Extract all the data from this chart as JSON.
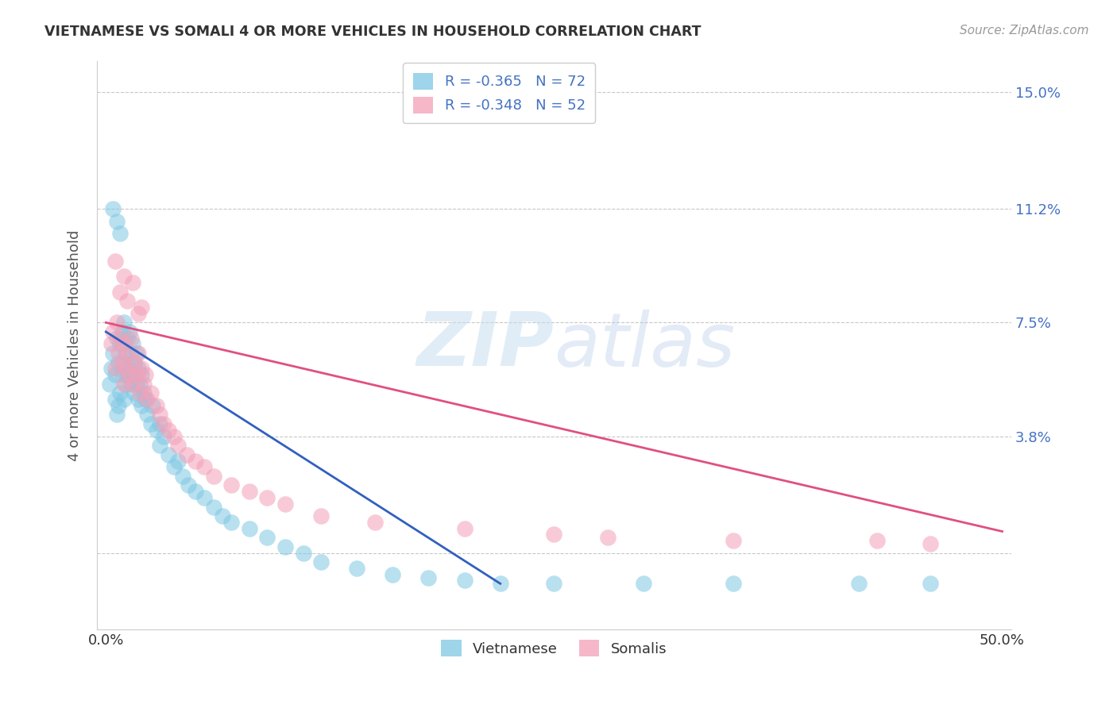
{
  "title": "VIETNAMESE VS SOMALI 4 OR MORE VEHICLES IN HOUSEHOLD CORRELATION CHART",
  "source": "Source: ZipAtlas.com",
  "ylabel": "4 or more Vehicles in Household",
  "xlim": [
    0.0,
    0.5
  ],
  "ylim": [
    -0.025,
    0.16
  ],
  "x_ticks": [
    0.0,
    0.5
  ],
  "x_tick_labels": [
    "0.0%",
    "50.0%"
  ],
  "y_ticks": [
    0.0,
    0.038,
    0.075,
    0.112,
    0.15
  ],
  "y_tick_labels": [
    "",
    "3.8%",
    "7.5%",
    "11.2%",
    "15.0%"
  ],
  "legend_label1": "Vietnamese",
  "legend_label2": "Somalis",
  "vietnamese_color": "#7ec8e3",
  "somali_color": "#f4a0b8",
  "line_color_v": "#3060c0",
  "line_color_s": "#e05080",
  "background_color": "#ffffff",
  "grid_color": "#c8c8c8",
  "viet_line_x0": 0.0,
  "viet_line_y0": 0.072,
  "viet_line_x1": 0.22,
  "viet_line_y1": -0.01,
  "soma_line_x0": 0.0,
  "soma_line_y0": 0.075,
  "soma_line_x1": 0.5,
  "soma_line_y1": 0.007,
  "vietnamese_x": [
    0.002,
    0.003,
    0.004,
    0.005,
    0.005,
    0.006,
    0.006,
    0.007,
    0.007,
    0.008,
    0.008,
    0.009,
    0.009,
    0.01,
    0.01,
    0.01,
    0.011,
    0.011,
    0.012,
    0.012,
    0.013,
    0.013,
    0.014,
    0.014,
    0.015,
    0.015,
    0.016,
    0.016,
    0.017,
    0.017,
    0.018,
    0.018,
    0.019,
    0.02,
    0.02,
    0.021,
    0.022,
    0.023,
    0.025,
    0.026,
    0.028,
    0.03,
    0.03,
    0.032,
    0.035,
    0.038,
    0.04,
    0.043,
    0.046,
    0.05,
    0.055,
    0.06,
    0.065,
    0.07,
    0.08,
    0.09,
    0.1,
    0.11,
    0.12,
    0.14,
    0.16,
    0.18,
    0.2,
    0.22,
    0.25,
    0.3,
    0.35,
    0.42,
    0.46,
    0.004,
    0.006,
    0.008
  ],
  "vietnamese_y": [
    0.055,
    0.06,
    0.065,
    0.05,
    0.058,
    0.045,
    0.07,
    0.048,
    0.062,
    0.052,
    0.068,
    0.058,
    0.072,
    0.05,
    0.062,
    0.075,
    0.055,
    0.065,
    0.058,
    0.07,
    0.06,
    0.072,
    0.055,
    0.065,
    0.058,
    0.068,
    0.052,
    0.062,
    0.055,
    0.065,
    0.05,
    0.06,
    0.055,
    0.048,
    0.058,
    0.052,
    0.05,
    0.045,
    0.042,
    0.048,
    0.04,
    0.035,
    0.042,
    0.038,
    0.032,
    0.028,
    0.03,
    0.025,
    0.022,
    0.02,
    0.018,
    0.015,
    0.012,
    0.01,
    0.008,
    0.005,
    0.002,
    0.0,
    -0.003,
    -0.005,
    -0.007,
    -0.008,
    -0.009,
    -0.01,
    -0.01,
    -0.01,
    -0.01,
    -0.01,
    -0.01,
    0.112,
    0.108,
    0.104
  ],
  "somali_x": [
    0.003,
    0.004,
    0.005,
    0.006,
    0.007,
    0.008,
    0.009,
    0.01,
    0.01,
    0.011,
    0.012,
    0.013,
    0.014,
    0.015,
    0.016,
    0.017,
    0.018,
    0.019,
    0.02,
    0.021,
    0.022,
    0.023,
    0.025,
    0.028,
    0.03,
    0.032,
    0.035,
    0.038,
    0.04,
    0.045,
    0.05,
    0.055,
    0.06,
    0.07,
    0.08,
    0.09,
    0.1,
    0.12,
    0.15,
    0.2,
    0.25,
    0.28,
    0.35,
    0.43,
    0.46,
    0.005,
    0.008,
    0.01,
    0.012,
    0.015,
    0.018,
    0.02
  ],
  "somali_y": [
    0.068,
    0.072,
    0.06,
    0.075,
    0.065,
    0.07,
    0.062,
    0.055,
    0.068,
    0.06,
    0.065,
    0.058,
    0.07,
    0.055,
    0.062,
    0.058,
    0.065,
    0.052,
    0.06,
    0.055,
    0.058,
    0.05,
    0.052,
    0.048,
    0.045,
    0.042,
    0.04,
    0.038,
    0.035,
    0.032,
    0.03,
    0.028,
    0.025,
    0.022,
    0.02,
    0.018,
    0.016,
    0.012,
    0.01,
    0.008,
    0.006,
    0.005,
    0.004,
    0.004,
    0.003,
    0.095,
    0.085,
    0.09,
    0.082,
    0.088,
    0.078,
    0.08
  ]
}
